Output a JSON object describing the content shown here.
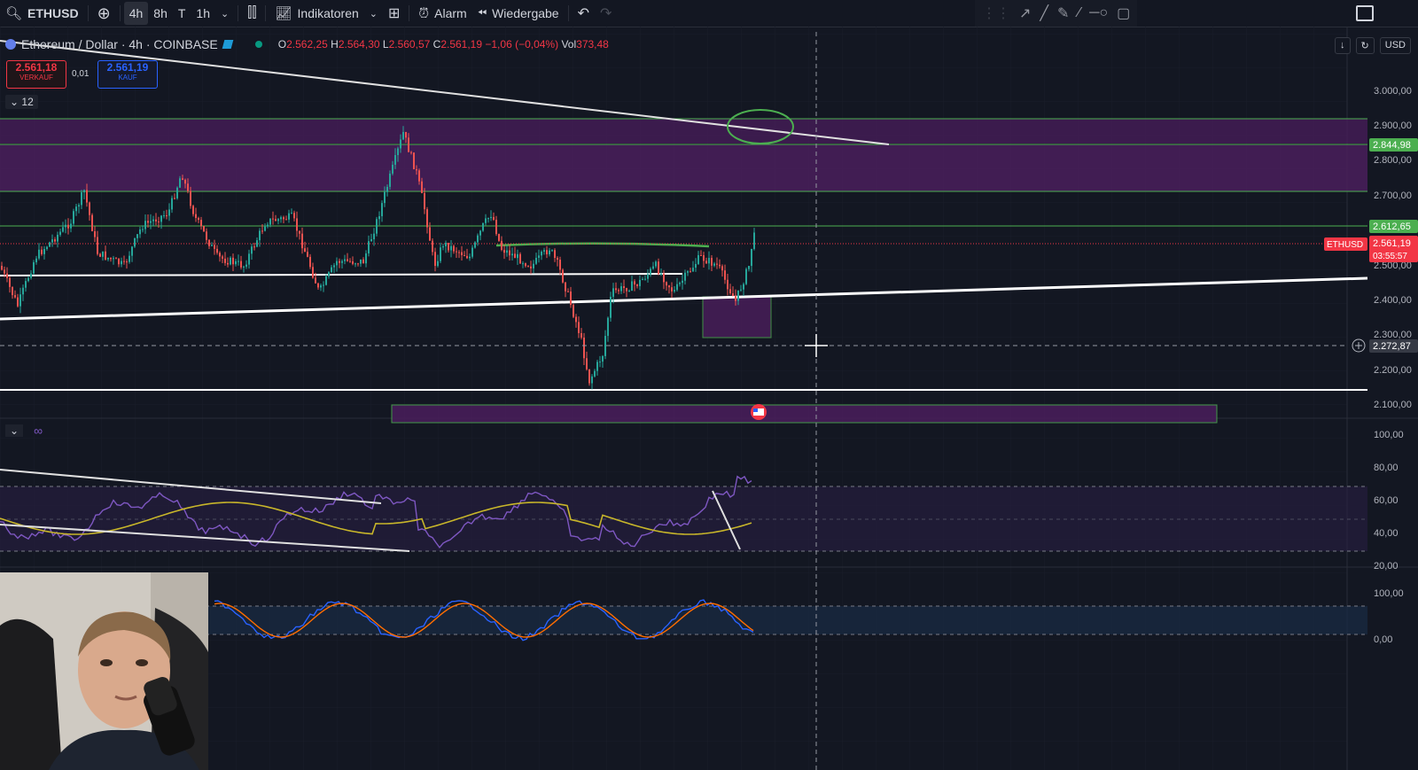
{
  "toolbar": {
    "symbol": "ETHUSD",
    "intervals": [
      "4h",
      "8h",
      "T",
      "1h"
    ],
    "active_interval": "4h",
    "indicators_label": "Indikatoren",
    "alarm_label": "Alarm",
    "replay_label": "Wiedergabe"
  },
  "legend": {
    "symbol_title": "Ethereum / Dollar · 4h · COINBASE",
    "open_label": "O",
    "open": "2.562,25",
    "high_label": "H",
    "high": "2.564,30",
    "low_label": "L",
    "low": "2.560,57",
    "close_label": "C",
    "close": "2.561,19",
    "change": "−1,06 (−0,04%)",
    "volume_label": "Vol",
    "volume": "373,48"
  },
  "trade": {
    "sell_price": "2.561,18",
    "sell_label": "VERKAUF",
    "spread": "0,01",
    "buy_price": "2.561,19",
    "buy_label": "KAUF"
  },
  "collapse_count": "12",
  "currency": "USD",
  "price_scale": {
    "labels": [
      "3.000,00",
      "2.900,00",
      "2.800,00",
      "2.700,00",
      "2.500,00",
      "2.400,00",
      "2.300,00",
      "2.200,00",
      "2.100,00"
    ],
    "tag_green_upper": "2.844,98",
    "tag_green_lower": "2.612,65",
    "tag_price": "2.561,19",
    "tag_countdown": "03:55:57",
    "tag_symbol": "ETHUSD",
    "tag_crosshair": "2.272,87"
  },
  "rsi_scale": [
    "100,00",
    "80,00",
    "60,00",
    "40,00",
    "20,00"
  ],
  "stoch_scale": [
    "100,00",
    "0,00"
  ],
  "colors": {
    "background": "#131722",
    "candle_up": "#26a69a",
    "candle_down": "#ef5350",
    "zone": "#4a1e5c",
    "zone_border": "#4caf50",
    "rsi": "#7e57c2",
    "rsi_ma": "#c8b62a",
    "stoch_k": "#2962ff",
    "stoch_d": "#ff6d00"
  }
}
